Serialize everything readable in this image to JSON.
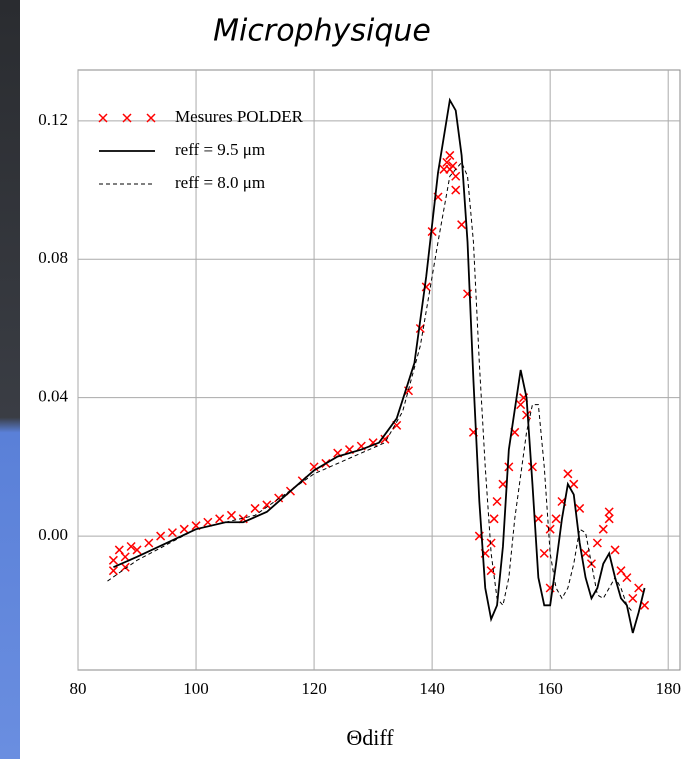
{
  "chart_data": {
    "type": "line",
    "title": "Microphysique",
    "xlabel": "Θdiff",
    "xlim": [
      80,
      182
    ],
    "ylim": [
      -0.0387,
      0.1347
    ],
    "xticks": [
      80,
      100,
      120,
      140,
      160,
      180
    ],
    "yticks": [
      {
        "value": 0,
        "label": "0.00"
      },
      0.04,
      0.08,
      0.12
    ],
    "grid": true,
    "legend": "upper left",
    "series": [
      {
        "name": "Mesures POLDER",
        "color": "#ff0000",
        "style": "markers",
        "x": [
          86,
          87,
          88,
          89,
          90,
          92,
          94,
          96,
          98,
          100,
          102,
          104,
          106,
          108,
          110,
          112,
          114,
          116,
          118,
          120,
          122,
          124,
          126,
          128,
          130,
          132,
          134,
          136,
          138,
          139,
          140,
          141,
          142,
          142.5,
          143,
          143.5,
          144,
          145,
          146,
          147,
          148,
          149,
          150,
          150.5,
          151,
          152,
          153,
          154,
          155,
          155.5,
          156,
          157,
          158,
          159,
          160,
          161,
          162,
          163,
          164,
          165,
          166,
          167,
          168,
          169,
          170,
          171,
          172,
          173,
          174,
          175,
          176,
          86,
          88,
          143,
          144,
          150,
          160,
          170
        ],
        "values": [
          -0.007,
          -0.004,
          -0.006,
          -0.003,
          -0.004,
          -0.002,
          0.0,
          0.001,
          0.002,
          0.003,
          0.004,
          0.005,
          0.006,
          0.005,
          0.008,
          0.009,
          0.011,
          0.013,
          0.016,
          0.02,
          0.021,
          0.024,
          0.025,
          0.026,
          0.027,
          0.028,
          0.032,
          0.042,
          0.06,
          0.072,
          0.088,
          0.098,
          0.106,
          0.108,
          0.11,
          0.107,
          0.1,
          0.09,
          0.07,
          0.03,
          0.0,
          -0.005,
          -0.01,
          0.005,
          0.01,
          0.015,
          0.02,
          0.03,
          0.038,
          0.04,
          0.035,
          0.02,
          0.005,
          -0.005,
          0.002,
          0.005,
          0.01,
          0.018,
          0.015,
          0.008,
          -0.005,
          -0.008,
          -0.002,
          0.002,
          0.005,
          -0.004,
          -0.01,
          -0.012,
          -0.018,
          -0.015,
          -0.02,
          -0.01,
          -0.009,
          0.106,
          0.104,
          -0.002,
          -0.015,
          0.007
        ]
      },
      {
        "name": "reff = 9.5 μm",
        "color": "#000000",
        "style": "solid",
        "x": [
          86,
          90,
          95,
          100,
          105,
          108,
          112,
          116,
          120,
          124,
          128,
          131,
          134,
          137,
          139,
          141,
          143,
          144,
          145,
          146,
          147,
          148,
          149,
          150,
          151,
          152,
          153,
          155,
          156,
          157,
          158,
          159,
          160,
          161,
          162,
          163,
          164,
          165,
          166,
          167,
          168,
          169,
          170,
          171,
          172,
          173,
          174,
          175,
          176
        ],
        "values": [
          -0.009,
          -0.006,
          -0.002,
          0.002,
          0.004,
          0.004,
          0.007,
          0.013,
          0.019,
          0.023,
          0.025,
          0.027,
          0.034,
          0.05,
          0.075,
          0.105,
          0.126,
          0.123,
          0.11,
          0.085,
          0.045,
          0.01,
          -0.015,
          -0.024,
          -0.02,
          -0.003,
          0.025,
          0.048,
          0.04,
          0.015,
          -0.012,
          -0.02,
          -0.02,
          -0.008,
          0.005,
          0.015,
          0.012,
          -0.002,
          -0.012,
          -0.018,
          -0.015,
          -0.008,
          -0.005,
          -0.012,
          -0.018,
          -0.02,
          -0.028,
          -0.022,
          -0.015
        ]
      },
      {
        "name": "reff = 8.0 μm",
        "color": "#000000",
        "style": "dashed",
        "x": [
          85,
          90,
          100,
          110,
          120,
          128,
          132,
          135,
          138,
          141,
          143,
          145,
          146,
          147,
          148,
          149,
          150,
          151,
          152,
          153,
          154,
          156,
          157,
          158,
          159,
          160,
          161,
          162,
          163,
          164,
          165,
          166,
          167,
          168,
          169,
          170,
          171,
          172,
          173,
          174
        ],
        "values": [
          -0.013,
          -0.007,
          0.002,
          0.006,
          0.018,
          0.024,
          0.027,
          0.036,
          0.055,
          0.085,
          0.104,
          0.108,
          0.104,
          0.085,
          0.05,
          0.02,
          -0.005,
          -0.018,
          -0.02,
          -0.012,
          0.005,
          0.03,
          0.038,
          0.038,
          0.02,
          -0.005,
          -0.015,
          -0.018,
          -0.015,
          -0.008,
          0.002,
          0.001,
          -0.008,
          -0.017,
          -0.018,
          -0.015,
          -0.012,
          -0.015,
          -0.02,
          -0.022
        ]
      }
    ]
  }
}
